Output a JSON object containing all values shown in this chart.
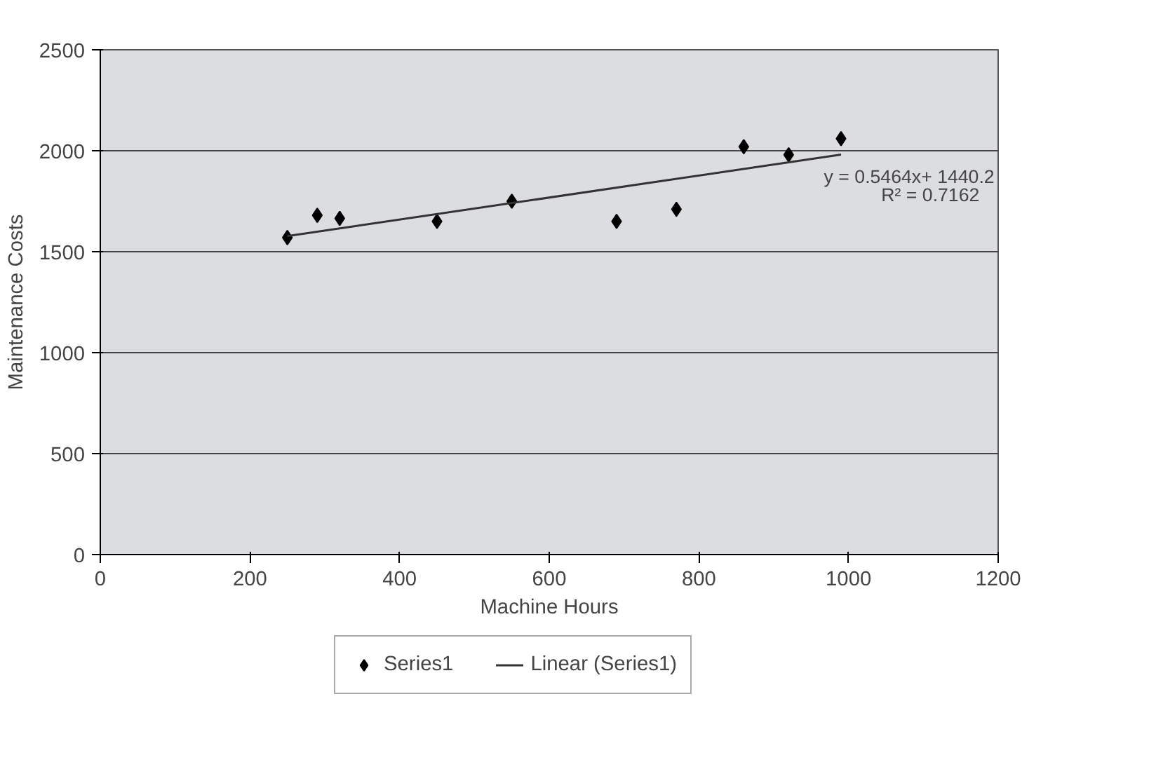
{
  "chart_data": {
    "type": "scatter",
    "xlabel": "Machine Hours",
    "ylabel": "Maintenance Costs",
    "series": [
      {
        "name": "Series1",
        "color": "#000000",
        "marker": "diamond",
        "x": [
          250,
          290,
          320,
          450,
          550,
          690,
          770,
          860,
          920,
          990
        ],
        "values": [
          1570,
          1680,
          1665,
          1650,
          1750,
          1650,
          1710,
          2020,
          1980,
          2060
        ]
      },
      {
        "name": "Linear (Series1)",
        "type": "line",
        "color": "#333333",
        "line_style": "solid",
        "x": [
          250,
          990
        ],
        "values": [
          1577,
          1981
        ]
      }
    ],
    "xlim": [
      0,
      1200
    ],
    "xticks": [
      0,
      200,
      400,
      600,
      800,
      1000,
      1200
    ],
    "ylim": [
      0,
      2500
    ],
    "yticks": [
      0,
      500,
      1000,
      1500,
      2000,
      2500
    ],
    "grid": "y",
    "legend": "bottom",
    "annotations": [
      "y = 0.5464x+ 1440.2",
      "R² = 0.7162"
    ]
  }
}
